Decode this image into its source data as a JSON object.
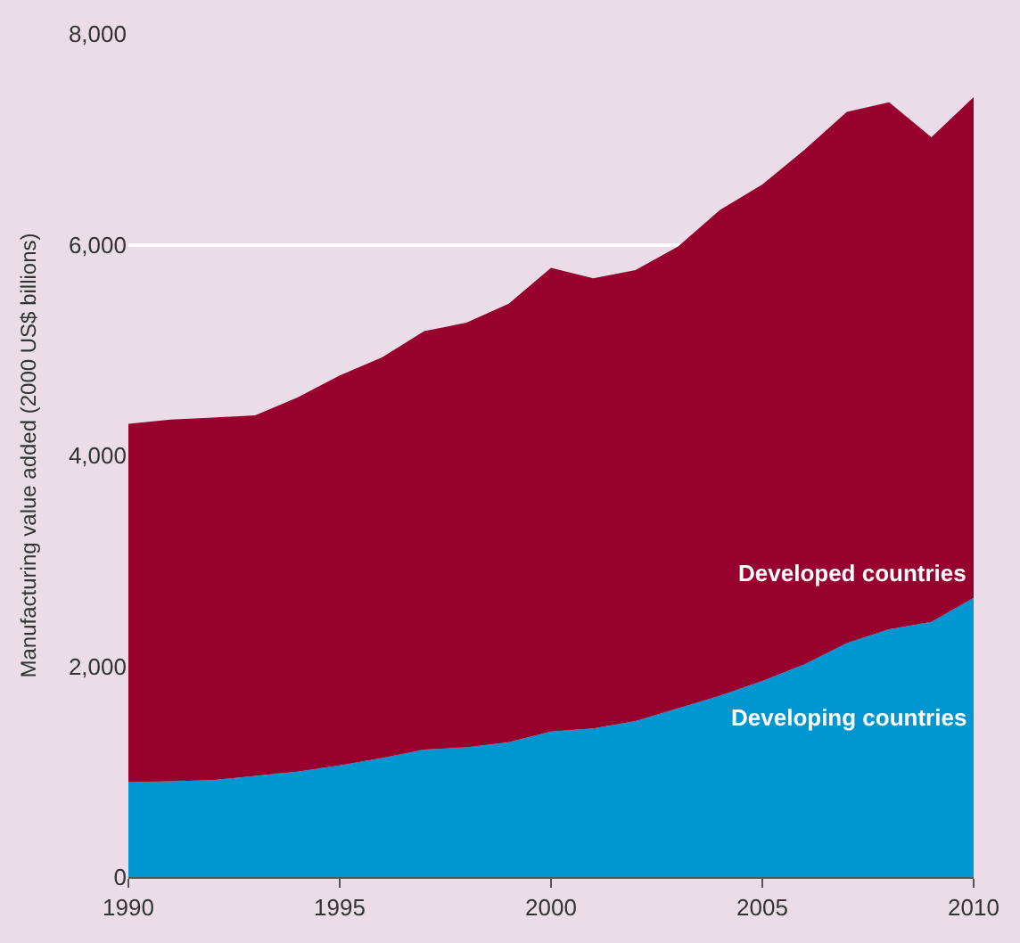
{
  "chart_data": {
    "type": "area",
    "stacked": true,
    "ylabel": "Manufacturing value added (2000 US$ billions)",
    "x": [
      1990,
      1991,
      1992,
      1993,
      1994,
      1995,
      1996,
      1997,
      1998,
      1999,
      2000,
      2001,
      2002,
      2003,
      2004,
      2005,
      2006,
      2007,
      2008,
      2009,
      2010
    ],
    "series": [
      {
        "name": "Developing countries",
        "color": "#0096d2",
        "values": [
          900,
          910,
          920,
          960,
          1000,
          1060,
          1130,
          1210,
          1230,
          1280,
          1380,
          1410,
          1480,
          1600,
          1720,
          1860,
          2020,
          2220,
          2350,
          2420,
          2650
        ]
      },
      {
        "name": "Developed countries",
        "color": "#98002e",
        "values": [
          3400,
          3430,
          3440,
          3420,
          3550,
          3700,
          3800,
          3970,
          4030,
          4160,
          4400,
          4270,
          4280,
          4380,
          4610,
          4710,
          4880,
          5040,
          5000,
          4600,
          4750
        ]
      }
    ],
    "xlim": [
      1990,
      2010
    ],
    "xticks": [
      1990,
      1995,
      2000,
      2005,
      2010
    ],
    "ylim": [
      0,
      8000
    ],
    "yticks": [
      {
        "value": 0,
        "label": "0"
      },
      {
        "value": 2000,
        "label": "2,000"
      },
      {
        "value": 4000,
        "label": "4,000"
      },
      {
        "value": 6000,
        "label": "6,000"
      },
      {
        "value": 8000,
        "label": "8,000"
      }
    ],
    "grid": "y"
  }
}
